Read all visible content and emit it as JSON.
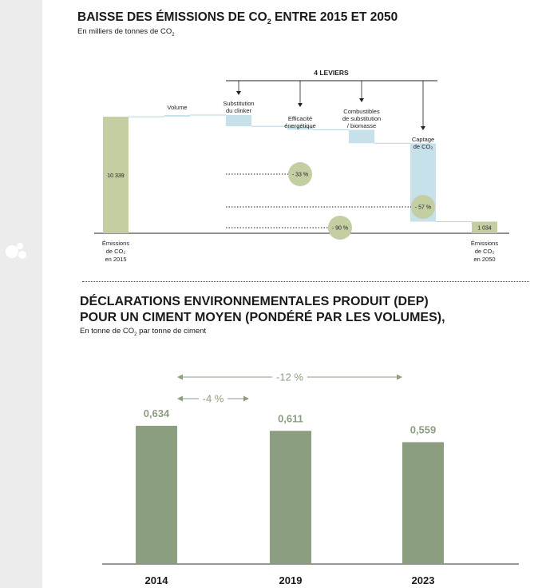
{
  "sidebar": {
    "logo_icon": "brand-dots-icon"
  },
  "chart1": {
    "title_main": "BAISSE DES ÉMISSIONS DE CO",
    "title_sub": "2",
    "title_tail": " ENTRE 2015 ET 2050",
    "subtitle_main": "En milliers de tonnes de CO",
    "subtitle_sub": "2"
  },
  "chart2": {
    "title_line1": "DÉCLARATIONS ENVIRONNEMENTALES PRODUIT (DEP)",
    "title_line2": "POUR UN CIMENT MOYEN (PONDÉRÉ PAR LES VOLUMES),",
    "subtitle_main": "En tonne de CO",
    "subtitle_sub": "2",
    "subtitle_tail": " par tonne de ciment"
  },
  "chart_data": [
    {
      "type": "waterfall",
      "start": {
        "label": [
          "Émissions",
          "de CO₂",
          "en 2015"
        ],
        "value": 10339,
        "value_label": "10 339"
      },
      "end": {
        "label": [
          "Émissions",
          "de CO₂",
          "en 2050"
        ],
        "value": 1034,
        "value_label": "1 034"
      },
      "steps": [
        {
          "label": [
            "Volume"
          ],
          "delta": 150
        },
        {
          "label": [
            "Substitution",
            "du clinker"
          ],
          "delta": -1000
        },
        {
          "label": [
            "Efficacité",
            "énergétique"
          ],
          "delta": -300
        },
        {
          "label": [
            "Combustibles",
            "de substitution",
            "/ biomasse"
          ],
          "delta": -1200
        },
        {
          "label": [
            "Captage",
            "de CO₂"
          ],
          "delta": -6955
        }
      ],
      "bracket_label": "4 LEVIERS",
      "annotations": [
        {
          "label": "- 33 %"
        },
        {
          "label": "- 57 %"
        },
        {
          "label": "- 90 %"
        }
      ],
      "colors": {
        "start_end": "#c3cea3",
        "volume": "#c8e0e8",
        "levers": "#c6e1ea",
        "circle": "#c3cea3"
      }
    },
    {
      "type": "bar",
      "categories": [
        "2014",
        "2019",
        "2023"
      ],
      "values": [
        0.634,
        0.611,
        0.559
      ],
      "value_labels": [
        "0,634",
        "0,611",
        "0,559"
      ],
      "ylim": [
        0,
        0.634
      ],
      "comparisons": [
        {
          "label": "-12 %",
          "from": "2014",
          "to": "2023"
        },
        {
          "label": "-4 %",
          "from": "2014",
          "to": "2019"
        }
      ],
      "colors": {
        "bar": "#8b9e80",
        "value_label": "#8b9e80",
        "arrow": "#8b9e80"
      }
    }
  ]
}
